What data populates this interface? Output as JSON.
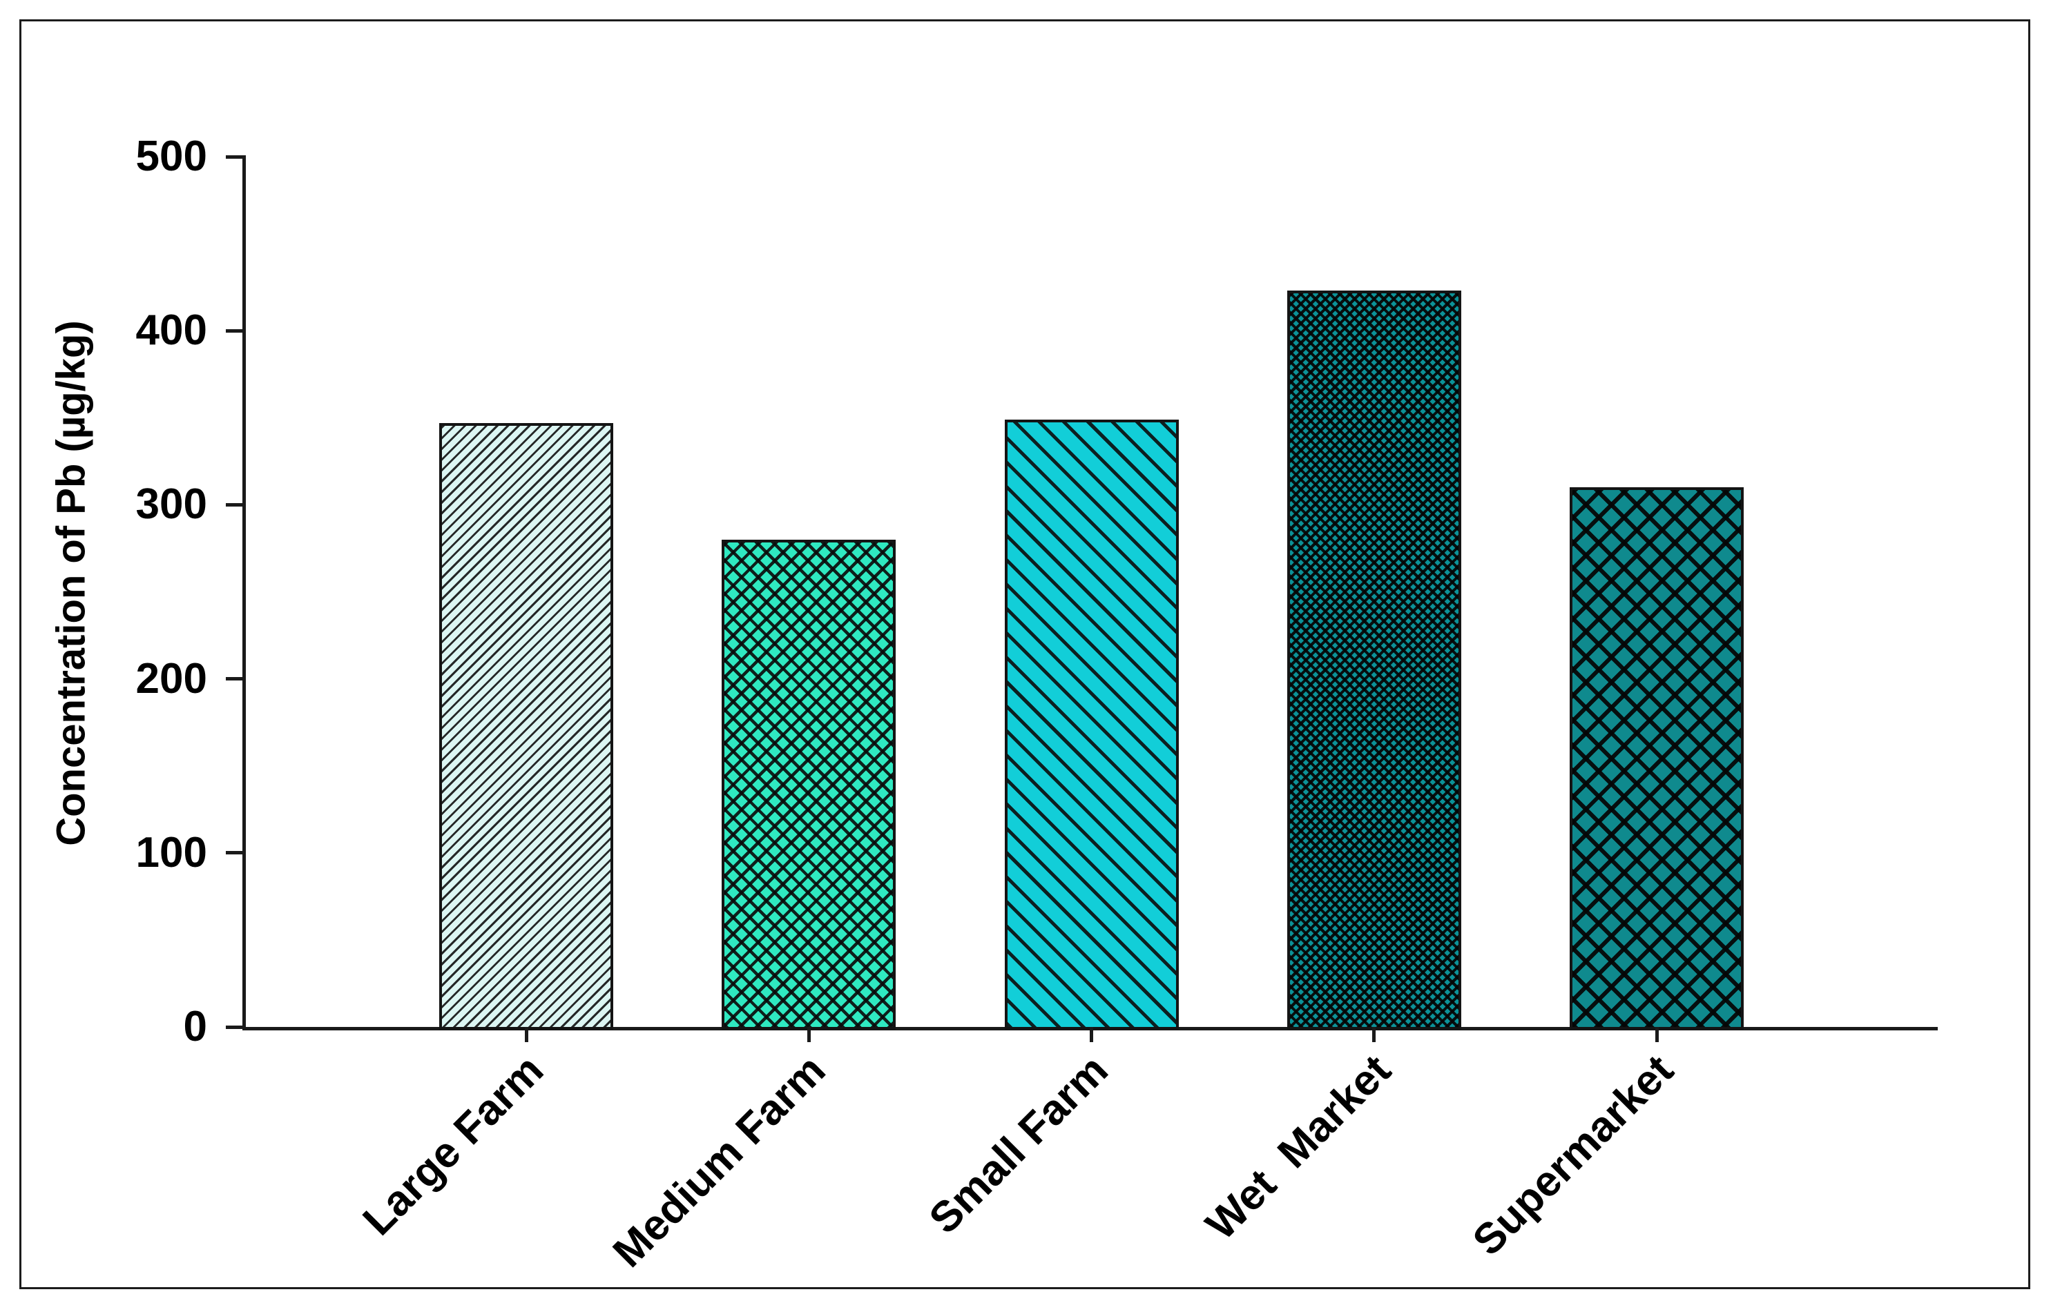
{
  "chart_data": {
    "type": "bar",
    "title": "",
    "xlabel": "",
    "ylabel": "Concentration of Pb (µg/kg)",
    "ylim": [
      0,
      500
    ],
    "yticks": [
      0,
      100,
      200,
      300,
      400,
      500
    ],
    "grid": false,
    "legend": "none",
    "categories": [
      "Large Farm",
      "Medium Farm",
      "Small Farm",
      "Wet  Market",
      "Supermarket"
    ],
    "series": [
      {
        "category": "Large Farm",
        "value": 347,
        "fill": "#DCF6F3",
        "hatch": "thin-diagonal-up",
        "hatch_color": "#141414"
      },
      {
        "category": "Medium Farm",
        "value": 280,
        "fill": "#2FE9C1",
        "hatch": "crosshatch-medium",
        "hatch_color": "#141414"
      },
      {
        "category": "Small Farm",
        "value": 349,
        "fill": "#12CED8",
        "hatch": "diagonal-down",
        "hatch_color": "#141414"
      },
      {
        "category": "Wet  Market",
        "value": 423,
        "fill": "#0C9298",
        "hatch": "crosshatch-fine",
        "hatch_color": "#101010"
      },
      {
        "category": "Supermarket",
        "value": 310,
        "fill": "#0F8A8E",
        "hatch": "crosshatch-large",
        "hatch_color": "#101010"
      }
    ],
    "axis_color": "#1A1A1A",
    "text_color": "#000000",
    "background": "#FFFFFF",
    "frame_color": "#1C1C1C"
  }
}
